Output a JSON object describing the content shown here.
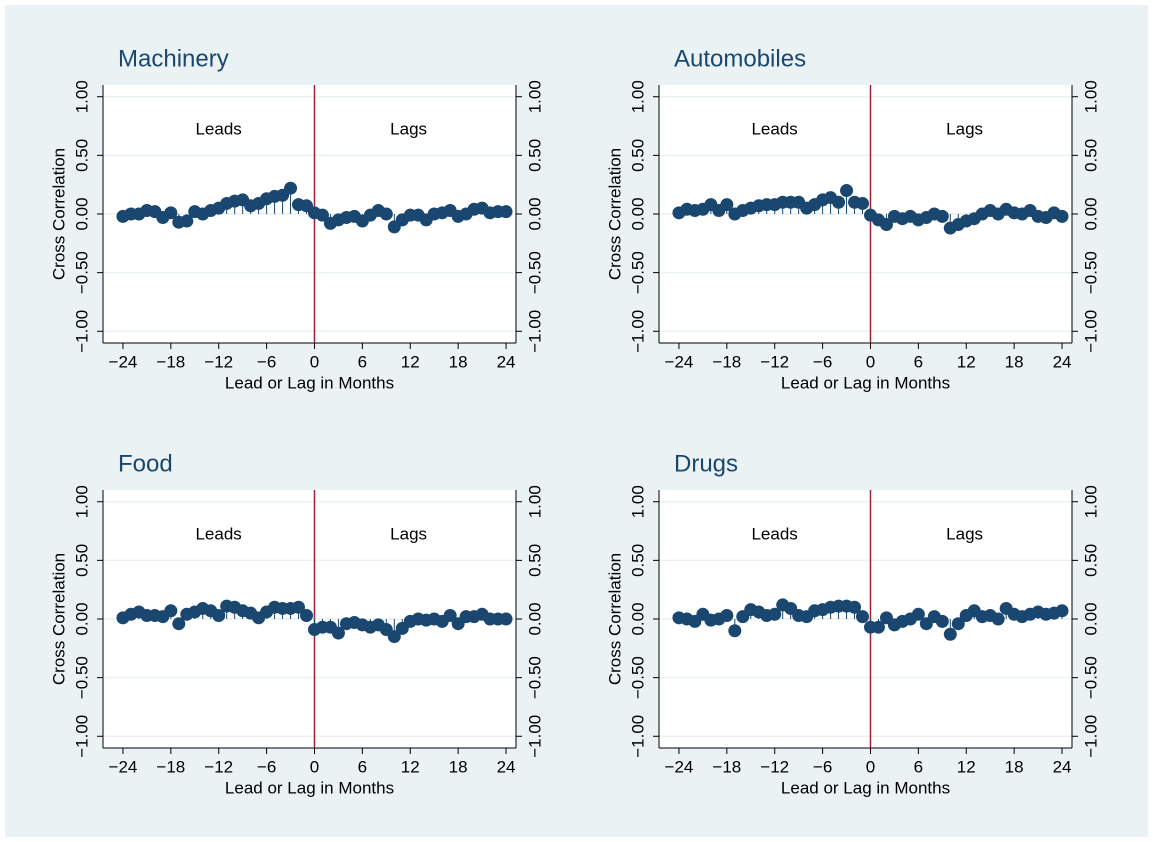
{
  "chart_data": [
    {
      "type": "stem",
      "title": "Machinery",
      "xlabel": "Lead or Lag in Months",
      "ylabel": "Cross Correlation",
      "annotations": [
        "Leads",
        "Lags"
      ],
      "marker_color": "#1a476f",
      "xline": 0,
      "xline_color": "#a0203a",
      "grid": true,
      "x": [
        -24,
        -23,
        -22,
        -21,
        -20,
        -19,
        -18,
        -17,
        -16,
        -15,
        -14,
        -13,
        -12,
        -11,
        -10,
        -9,
        -8,
        -7,
        -6,
        -5,
        -4,
        -3,
        -2,
        -1,
        0,
        1,
        2,
        3,
        4,
        5,
        6,
        7,
        8,
        9,
        10,
        11,
        12,
        13,
        14,
        15,
        16,
        17,
        18,
        19,
        20,
        21,
        22,
        23,
        24
      ],
      "values": [
        -0.02,
        0.0,
        0.0,
        0.03,
        0.02,
        -0.03,
        0.01,
        -0.07,
        -0.06,
        0.02,
        0.0,
        0.03,
        0.05,
        0.09,
        0.11,
        0.12,
        0.07,
        0.09,
        0.13,
        0.15,
        0.16,
        0.22,
        0.08,
        0.07,
        0.01,
        -0.01,
        -0.08,
        -0.05,
        -0.03,
        -0.02,
        -0.06,
        -0.01,
        0.03,
        0.0,
        -0.11,
        -0.05,
        -0.01,
        -0.01,
        -0.05,
        0.0,
        0.01,
        0.03,
        -0.02,
        0.0,
        0.04,
        0.05,
        0.01,
        0.02,
        0.02
      ],
      "xlim": [
        -26.5,
        25.25
      ],
      "ylim": [
        -1.1,
        1.1
      ],
      "xticks": [
        {
          "value": -24,
          "label": "−24"
        },
        {
          "value": -18,
          "label": "−18"
        },
        {
          "value": -12,
          "label": "−12"
        },
        {
          "value": -6,
          "label": "−6"
        },
        0,
        6,
        12,
        18,
        24
      ],
      "yticks": [
        {
          "value": -1,
          "label": "−1.00"
        },
        {
          "value": -0.5,
          "label": "−0.50"
        },
        {
          "value": 0,
          "label": "0.00"
        },
        {
          "value": 0.5,
          "label": "0.50"
        },
        {
          "value": 1,
          "label": "1.00"
        }
      ]
    },
    {
      "type": "stem",
      "title": "Automobiles",
      "xlabel": "Lead or Lag in Months",
      "ylabel": "Cross Correlation",
      "annotations": [
        "Leads",
        "Lags"
      ],
      "marker_color": "#1a476f",
      "xline": 0,
      "xline_color": "#a0203a",
      "grid": true,
      "x": [
        -24,
        -23,
        -22,
        -21,
        -20,
        -19,
        -18,
        -17,
        -16,
        -15,
        -14,
        -13,
        -12,
        -11,
        -10,
        -9,
        -8,
        -7,
        -6,
        -5,
        -4,
        -3,
        -2,
        -1,
        0,
        1,
        2,
        3,
        4,
        5,
        6,
        7,
        8,
        9,
        10,
        11,
        12,
        13,
        14,
        15,
        16,
        17,
        18,
        19,
        20,
        21,
        22,
        23,
        24
      ],
      "values": [
        0.01,
        0.04,
        0.03,
        0.04,
        0.08,
        0.03,
        0.08,
        0.0,
        0.03,
        0.05,
        0.07,
        0.08,
        0.08,
        0.1,
        0.1,
        0.1,
        0.05,
        0.08,
        0.12,
        0.14,
        0.1,
        0.2,
        0.1,
        0.09,
        -0.01,
        -0.05,
        -0.09,
        -0.02,
        -0.04,
        -0.02,
        -0.05,
        -0.03,
        0.0,
        -0.02,
        -0.12,
        -0.09,
        -0.06,
        -0.04,
        0.0,
        0.03,
        0.0,
        0.04,
        0.01,
        0.0,
        0.03,
        -0.02,
        -0.03,
        0.01,
        -0.02
      ],
      "xlim": [
        -26.5,
        25.25
      ],
      "ylim": [
        -1.1,
        1.1
      ],
      "xticks": [
        {
          "value": -24,
          "label": "−24"
        },
        {
          "value": -18,
          "label": "−18"
        },
        {
          "value": -12,
          "label": "−12"
        },
        {
          "value": -6,
          "label": "−6"
        },
        0,
        6,
        12,
        18,
        24
      ],
      "yticks": [
        {
          "value": -1,
          "label": "−1.00"
        },
        {
          "value": -0.5,
          "label": "−0.50"
        },
        {
          "value": 0,
          "label": "0.00"
        },
        {
          "value": 0.5,
          "label": "0.50"
        },
        {
          "value": 1,
          "label": "1.00"
        }
      ]
    },
    {
      "type": "stem",
      "title": "Food",
      "xlabel": "Lead or Lag in Months",
      "ylabel": "Cross Correlation",
      "annotations": [
        "Leads",
        "Lags"
      ],
      "marker_color": "#1a476f",
      "xline": 0,
      "xline_color": "#a0203a",
      "grid": true,
      "x": [
        -24,
        -23,
        -22,
        -21,
        -20,
        -19,
        -18,
        -17,
        -16,
        -15,
        -14,
        -13,
        -12,
        -11,
        -10,
        -9,
        -8,
        -7,
        -6,
        -5,
        -4,
        -3,
        -2,
        -1,
        0,
        1,
        2,
        3,
        4,
        5,
        6,
        7,
        8,
        9,
        10,
        11,
        12,
        13,
        14,
        15,
        16,
        17,
        18,
        19,
        20,
        21,
        22,
        23,
        24
      ],
      "values": [
        0.01,
        0.04,
        0.06,
        0.03,
        0.03,
        0.02,
        0.07,
        -0.04,
        0.04,
        0.06,
        0.09,
        0.07,
        0.03,
        0.11,
        0.1,
        0.07,
        0.05,
        0.01,
        0.06,
        0.1,
        0.09,
        0.09,
        0.1,
        0.03,
        -0.09,
        -0.07,
        -0.07,
        -0.12,
        -0.04,
        -0.03,
        -0.05,
        -0.07,
        -0.05,
        -0.09,
        -0.15,
        -0.08,
        -0.02,
        0.0,
        -0.01,
        0.0,
        -0.02,
        0.03,
        -0.04,
        0.02,
        0.02,
        0.04,
        0.0,
        0.0,
        0.0
      ],
      "xlim": [
        -26.5,
        25.25
      ],
      "ylim": [
        -1.1,
        1.1
      ],
      "xticks": [
        {
          "value": -24,
          "label": "−24"
        },
        {
          "value": -18,
          "label": "−18"
        },
        {
          "value": -12,
          "label": "−12"
        },
        {
          "value": -6,
          "label": "−6"
        },
        0,
        6,
        12,
        18,
        24
      ],
      "yticks": [
        {
          "value": -1,
          "label": "−1.00"
        },
        {
          "value": -0.5,
          "label": "−0.50"
        },
        {
          "value": 0,
          "label": "0.00"
        },
        {
          "value": 0.5,
          "label": "0.50"
        },
        {
          "value": 1,
          "label": "1.00"
        }
      ]
    },
    {
      "type": "stem",
      "title": "Drugs",
      "xlabel": "Lead or Lag in Months",
      "ylabel": "Cross Correlation",
      "annotations": [
        "Leads",
        "Lags"
      ],
      "marker_color": "#1a476f",
      "xline": 0,
      "xline_color": "#a0203a",
      "grid": true,
      "x": [
        -24,
        -23,
        -22,
        -21,
        -20,
        -19,
        -18,
        -17,
        -16,
        -15,
        -14,
        -13,
        -12,
        -11,
        -10,
        -9,
        -8,
        -7,
        -6,
        -5,
        -4,
        -3,
        -2,
        -1,
        0,
        1,
        2,
        3,
        4,
        5,
        6,
        7,
        8,
        9,
        10,
        11,
        12,
        13,
        14,
        15,
        16,
        17,
        18,
        19,
        20,
        21,
        22,
        23,
        24
      ],
      "values": [
        0.01,
        0.0,
        -0.02,
        0.04,
        -0.01,
        0.0,
        0.03,
        -0.1,
        0.02,
        0.08,
        0.06,
        0.03,
        0.04,
        0.12,
        0.09,
        0.03,
        0.02,
        0.07,
        0.08,
        0.1,
        0.11,
        0.11,
        0.1,
        0.02,
        -0.07,
        -0.07,
        0.01,
        -0.05,
        -0.02,
        0.0,
        0.04,
        -0.04,
        0.02,
        -0.02,
        -0.13,
        -0.04,
        0.03,
        0.07,
        0.02,
        0.03,
        0.0,
        0.09,
        0.04,
        0.02,
        0.04,
        0.06,
        0.04,
        0.05,
        0.07
      ],
      "xlim": [
        -26.5,
        25.25
      ],
      "ylim": [
        -1.1,
        1.1
      ],
      "xticks": [
        {
          "value": -24,
          "label": "−24"
        },
        {
          "value": -18,
          "label": "−18"
        },
        {
          "value": -12,
          "label": "−12"
        },
        {
          "value": -6,
          "label": "−6"
        },
        0,
        6,
        12,
        18,
        24
      ],
      "yticks": [
        {
          "value": -1,
          "label": "−1.00"
        },
        {
          "value": -0.5,
          "label": "−0.50"
        },
        {
          "value": 0,
          "label": "0.00"
        },
        {
          "value": 0.5,
          "label": "0.50"
        },
        {
          "value": 1,
          "label": "1.00"
        }
      ]
    }
  ]
}
